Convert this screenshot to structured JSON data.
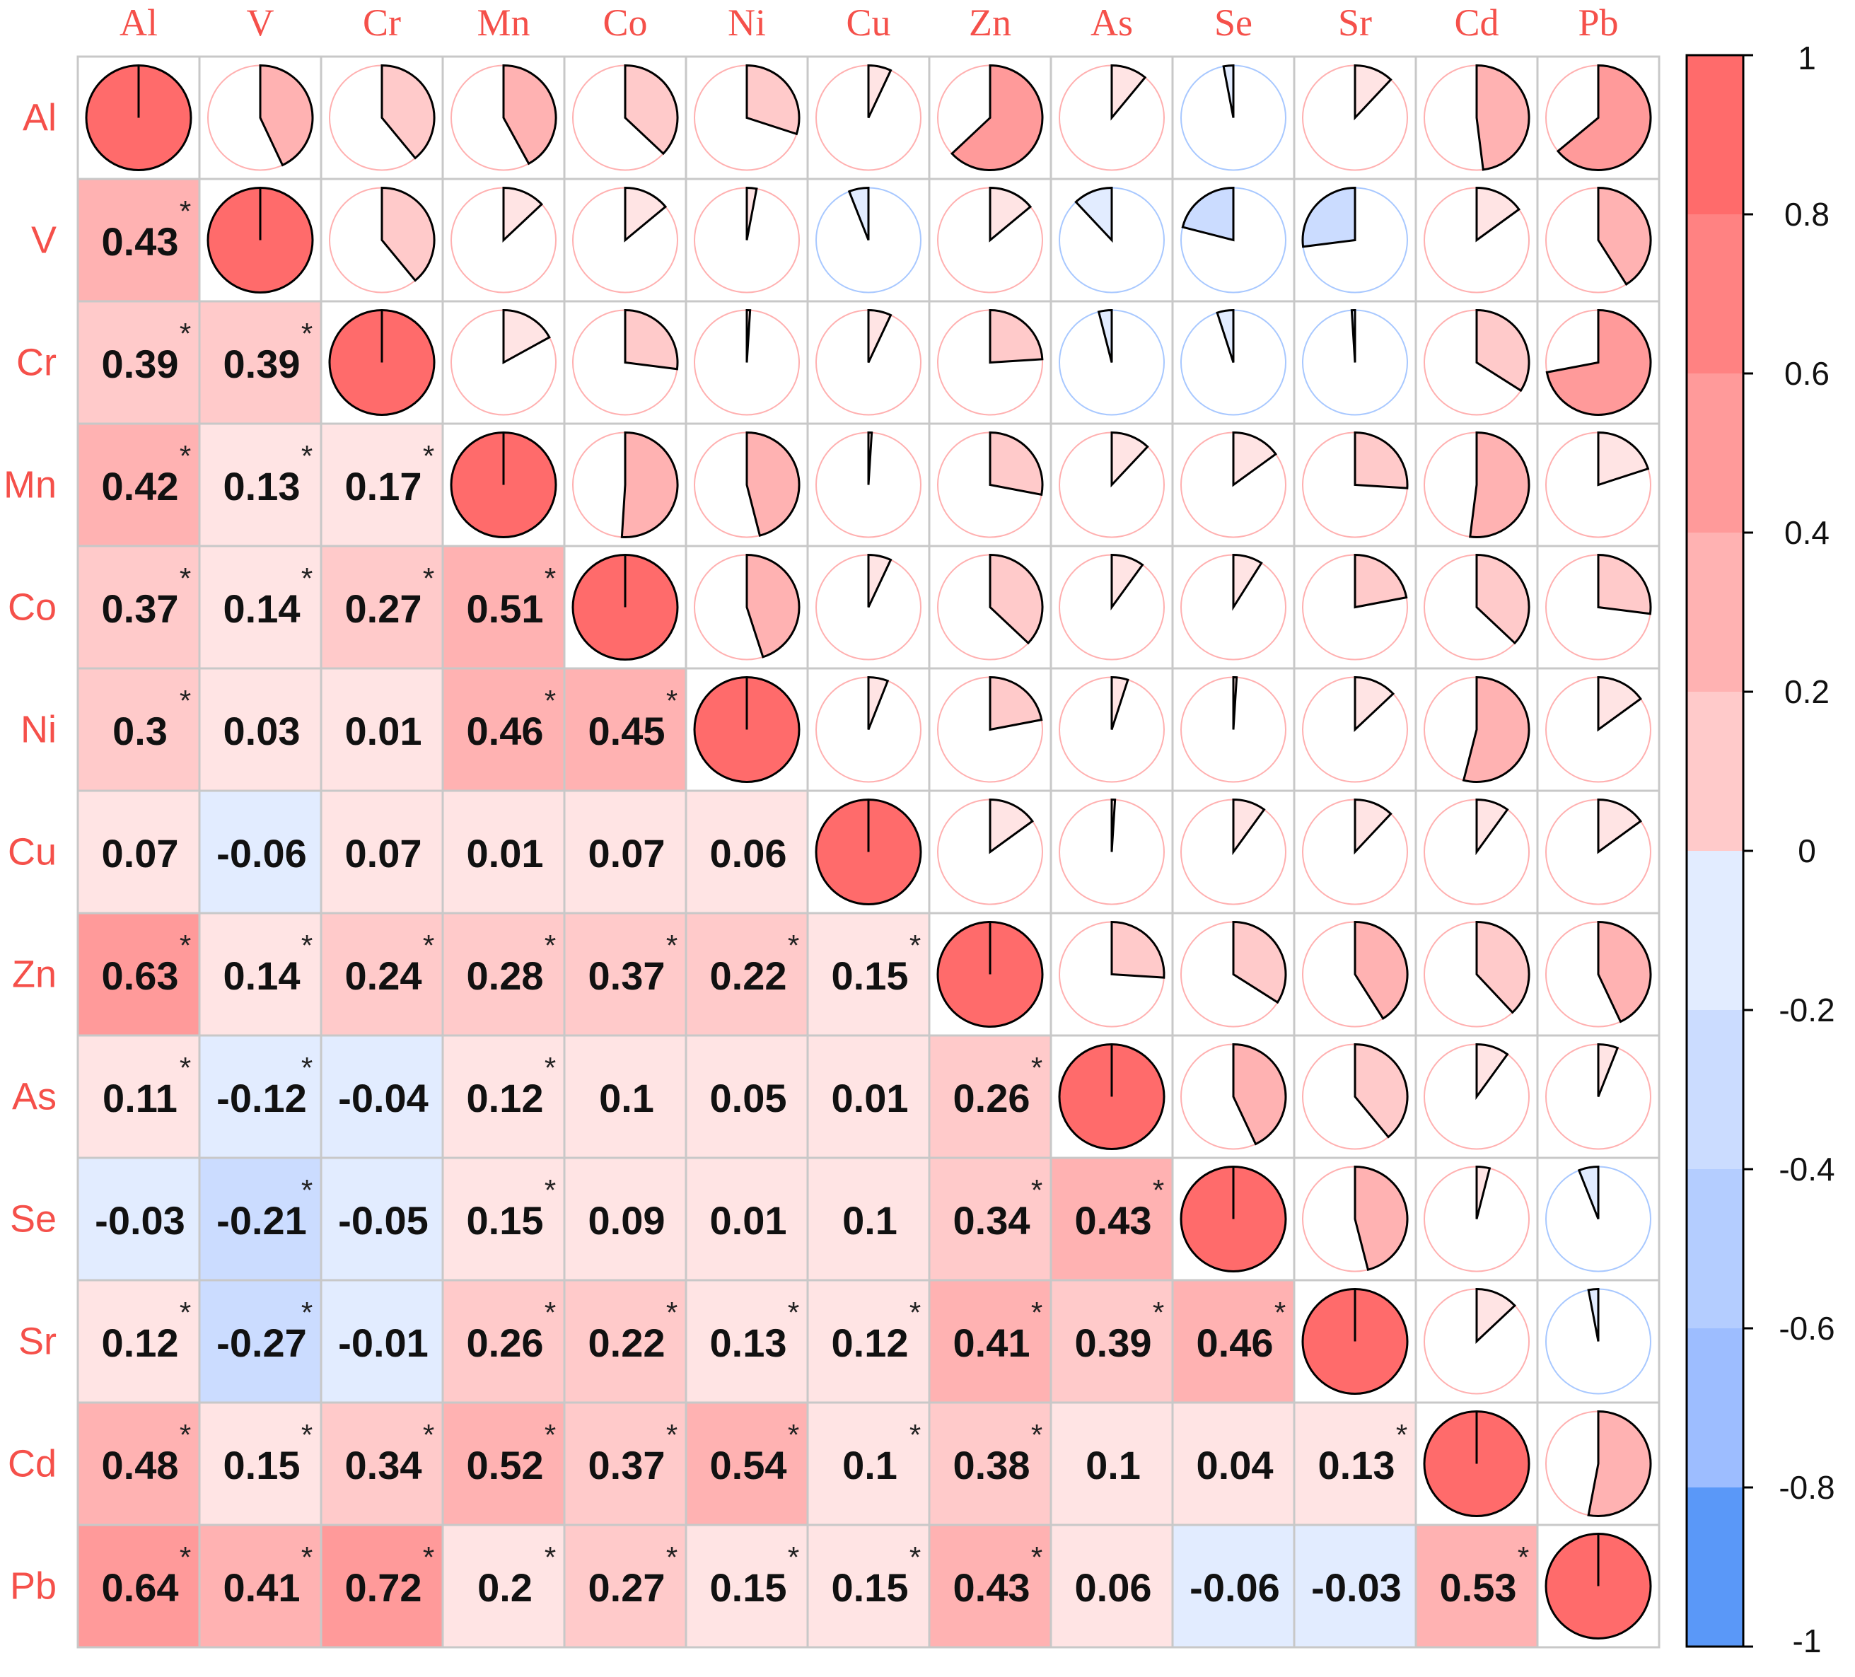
{
  "chart_data": {
    "type": "heatmap",
    "variables": [
      "Al",
      "V",
      "Cr",
      "Mn",
      "Co",
      "Ni",
      "Cu",
      "Zn",
      "As",
      "Se",
      "Sr",
      "Cd",
      "Pb"
    ],
    "matrix": [
      [
        1,
        0.43,
        0.39,
        0.42,
        0.37,
        0.3,
        0.07,
        0.63,
        0.11,
        -0.03,
        0.12,
        0.48,
        0.64
      ],
      [
        0.43,
        1,
        0.39,
        0.13,
        0.14,
        0.03,
        -0.06,
        0.14,
        -0.12,
        -0.21,
        -0.27,
        0.15,
        0.41
      ],
      [
        0.39,
        0.39,
        1,
        0.17,
        0.27,
        0.01,
        0.07,
        0.24,
        -0.04,
        -0.05,
        -0.01,
        0.34,
        0.72
      ],
      [
        0.42,
        0.13,
        0.17,
        1,
        0.51,
        0.46,
        0.01,
        0.28,
        0.12,
        0.15,
        0.26,
        0.52,
        0.2
      ],
      [
        0.37,
        0.14,
        0.27,
        0.51,
        1,
        0.45,
        0.07,
        0.37,
        0.1,
        0.09,
        0.22,
        0.37,
        0.27
      ],
      [
        0.3,
        0.03,
        0.01,
        0.46,
        0.45,
        1,
        0.06,
        0.22,
        0.05,
        0.01,
        0.13,
        0.54,
        0.15
      ],
      [
        0.07,
        -0.06,
        0.07,
        0.01,
        0.07,
        0.06,
        1,
        0.15,
        0.01,
        0.1,
        0.12,
        0.1,
        0.15
      ],
      [
        0.63,
        0.14,
        0.24,
        0.28,
        0.37,
        0.22,
        0.15,
        1,
        0.26,
        0.34,
        0.41,
        0.38,
        0.43
      ],
      [
        0.11,
        -0.12,
        -0.04,
        0.12,
        0.1,
        0.05,
        0.01,
        0.26,
        1,
        0.43,
        0.39,
        0.1,
        0.06
      ],
      [
        -0.03,
        -0.21,
        -0.05,
        0.15,
        0.09,
        0.01,
        0.1,
        0.34,
        0.43,
        1,
        0.46,
        0.04,
        -0.06
      ],
      [
        0.12,
        -0.27,
        -0.01,
        0.26,
        0.22,
        0.13,
        0.12,
        0.41,
        0.39,
        0.46,
        1,
        0.13,
        -0.03
      ],
      [
        0.48,
        0.15,
        0.34,
        0.52,
        0.37,
        0.54,
        0.1,
        0.38,
        0.1,
        0.04,
        0.13,
        1,
        0.53
      ],
      [
        0.64,
        0.41,
        0.72,
        0.2,
        0.27,
        0.15,
        0.15,
        0.43,
        0.06,
        -0.06,
        -0.03,
        0.53,
        1
      ]
    ],
    "significant": [
      [
        false,
        true,
        true,
        true,
        true,
        true,
        false,
        true,
        true,
        false,
        true,
        true,
        true
      ],
      [
        true,
        false,
        true,
        true,
        true,
        false,
        false,
        true,
        true,
        true,
        true,
        true,
        true
      ],
      [
        true,
        true,
        false,
        true,
        true,
        false,
        false,
        true,
        false,
        false,
        false,
        true,
        true
      ],
      [
        true,
        true,
        true,
        false,
        true,
        true,
        false,
        true,
        true,
        true,
        true,
        true,
        true
      ],
      [
        true,
        true,
        true,
        true,
        false,
        true,
        false,
        true,
        false,
        false,
        true,
        true,
        true
      ],
      [
        true,
        false,
        false,
        true,
        true,
        false,
        false,
        true,
        false,
        false,
        true,
        true,
        true
      ],
      [
        false,
        false,
        false,
        false,
        false,
        false,
        false,
        true,
        false,
        false,
        true,
        true,
        true
      ],
      [
        true,
        true,
        true,
        true,
        true,
        true,
        true,
        false,
        true,
        true,
        true,
        true,
        true
      ],
      [
        true,
        true,
        false,
        true,
        false,
        false,
        false,
        true,
        false,
        true,
        true,
        false,
        false
      ],
      [
        false,
        true,
        false,
        true,
        false,
        false,
        false,
        true,
        true,
        false,
        true,
        false,
        false
      ],
      [
        true,
        true,
        false,
        true,
        true,
        true,
        true,
        true,
        true,
        true,
        false,
        true,
        false
      ],
      [
        true,
        true,
        true,
        true,
        true,
        true,
        true,
        true,
        false,
        false,
        true,
        false,
        true
      ],
      [
        true,
        true,
        true,
        true,
        true,
        true,
        true,
        true,
        false,
        false,
        false,
        true,
        false
      ]
    ],
    "lower_panel": "number",
    "upper_panel": "pie",
    "significance_marker": "*",
    "colorbar": {
      "ticks": [
        1,
        0.8,
        0.6,
        0.4,
        0.2,
        0,
        -0.2,
        -0.4,
        -0.6,
        -0.8,
        -1
      ],
      "range": [
        -1,
        1
      ]
    },
    "palette": {
      "positive": [
        "#ffe4e4",
        "#ffcaca",
        "#ffb2b2",
        "#ff9a9a",
        "#ff8282",
        "#ff6b6b"
      ],
      "negative": [
        "#e2ecff",
        "#cbdcff",
        "#b4cdff",
        "#9dbdff",
        "#5a98f8",
        "#2a7ff5"
      ],
      "label_color": "#f5504a"
    }
  }
}
